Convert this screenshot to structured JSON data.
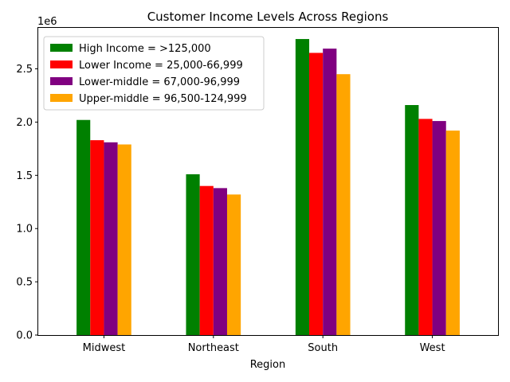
{
  "chart_data": {
    "type": "bar",
    "title": "Customer Income Levels Across Regions",
    "xlabel": "Region",
    "ylabel": "",
    "y_offset_label": "1e6",
    "categories": [
      "Midwest",
      "Northeast",
      "South",
      "West"
    ],
    "series": [
      {
        "name": "High Income = >125,000",
        "color": "#008000",
        "values": [
          2020000,
          1510000,
          2780000,
          2160000
        ]
      },
      {
        "name": "Lower Income = 25,000-66,999",
        "color": "#ff0000",
        "values": [
          1830000,
          1400000,
          2650000,
          2030000
        ]
      },
      {
        "name": "Lower-middle = 67,000-96,999",
        "color": "#800080",
        "values": [
          1810000,
          1380000,
          2690000,
          2010000
        ]
      },
      {
        "name": "Upper-middle = 96,500-124,999",
        "color": "#ffa500",
        "values": [
          1790000,
          1320000,
          2450000,
          1920000
        ]
      }
    ],
    "ylim": [
      0,
      2885000
    ],
    "yticks": [
      0,
      500000,
      1000000,
      1500000,
      2000000,
      2500000
    ],
    "ytick_labels": [
      "0.0",
      "0.5",
      "1.0",
      "1.5",
      "2.0",
      "2.5"
    ],
    "legend_position": "top-left",
    "grid": false
  }
}
